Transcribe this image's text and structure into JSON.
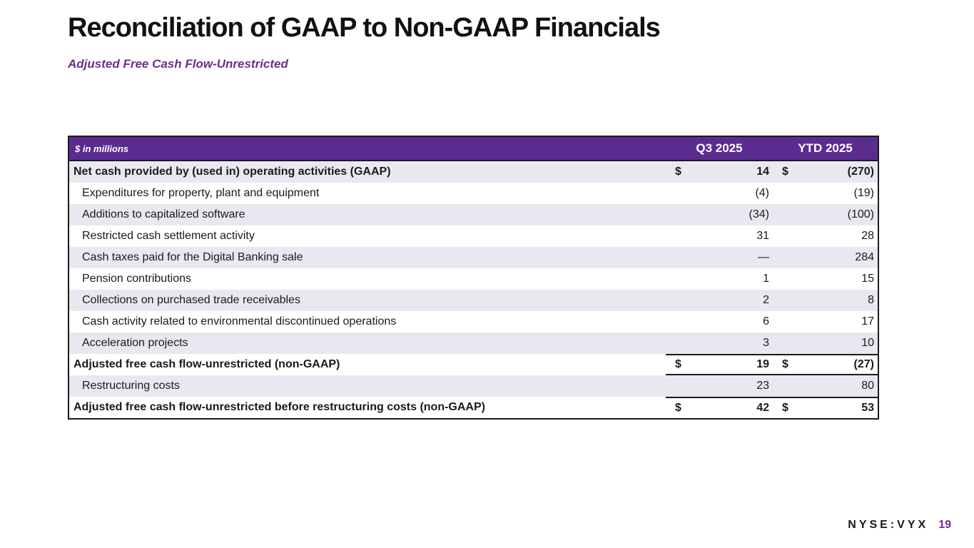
{
  "slide": {
    "title": "Reconciliation of GAAP to Non-GAAP Financials",
    "subtitle": "Adjusted Free Cash Flow-Unrestricted",
    "footer": {
      "ticker": "NYSE:VYX",
      "page_number": "19"
    }
  },
  "colors": {
    "header_purple": "#5b2c90",
    "shaded_row": "#e9e8f1",
    "subtitle_purple": "#6b2d91",
    "page_number_purple": "#7030a0"
  },
  "table": {
    "unit_label": "$ in millions",
    "columns": [
      "Q3 2025",
      "YTD 2025"
    ],
    "rows": [
      {
        "label": "Net cash provided by (used in) operating activities (GAAP)",
        "q3_dollar": "$",
        "q3": "14",
        "ytd_dollar": "$",
        "ytd": "(270)",
        "bold": true,
        "indent": false,
        "shaded": true,
        "rule_top": false,
        "rule_bottom": false
      },
      {
        "label": "Expenditures for property, plant and equipment",
        "q3_dollar": "",
        "q3": "(4)",
        "ytd_dollar": "",
        "ytd": "(19)",
        "bold": false,
        "indent": true,
        "shaded": false,
        "rule_top": false,
        "rule_bottom": false
      },
      {
        "label": "Additions to capitalized software",
        "q3_dollar": "",
        "q3": "(34)",
        "ytd_dollar": "",
        "ytd": "(100)",
        "bold": false,
        "indent": true,
        "shaded": true,
        "rule_top": false,
        "rule_bottom": false
      },
      {
        "label": "Restricted cash settlement activity",
        "q3_dollar": "",
        "q3": "31",
        "ytd_dollar": "",
        "ytd": "28",
        "bold": false,
        "indent": true,
        "shaded": false,
        "rule_top": false,
        "rule_bottom": false
      },
      {
        "label": "Cash taxes paid for the Digital Banking sale",
        "q3_dollar": "",
        "q3": "—",
        "ytd_dollar": "",
        "ytd": "284",
        "bold": false,
        "indent": true,
        "shaded": true,
        "rule_top": false,
        "rule_bottom": false
      },
      {
        "label": "Pension contributions",
        "q3_dollar": "",
        "q3": "1",
        "ytd_dollar": "",
        "ytd": "15",
        "bold": false,
        "indent": true,
        "shaded": false,
        "rule_top": false,
        "rule_bottom": false
      },
      {
        "label": "Collections on purchased trade receivables",
        "q3_dollar": "",
        "q3": "2",
        "ytd_dollar": "",
        "ytd": "8",
        "bold": false,
        "indent": true,
        "shaded": true,
        "rule_top": false,
        "rule_bottom": false
      },
      {
        "label": "Cash activity related to environmental discontinued operations",
        "q3_dollar": "",
        "q3": "6",
        "ytd_dollar": "",
        "ytd": "17",
        "bold": false,
        "indent": true,
        "shaded": false,
        "rule_top": false,
        "rule_bottom": false
      },
      {
        "label": "Acceleration projects",
        "q3_dollar": "",
        "q3": "3",
        "ytd_dollar": "",
        "ytd": "10",
        "bold": false,
        "indent": true,
        "shaded": true,
        "rule_top": false,
        "rule_bottom": false
      },
      {
        "label": "Adjusted free cash flow-unrestricted (non-GAAP)",
        "q3_dollar": "$",
        "q3": "19",
        "ytd_dollar": "$",
        "ytd": "(27)",
        "bold": true,
        "indent": false,
        "shaded": false,
        "rule_top": true,
        "rule_bottom": true
      },
      {
        "label": "Restructuring costs",
        "q3_dollar": "",
        "q3": "23",
        "ytd_dollar": "",
        "ytd": "80",
        "bold": false,
        "indent": true,
        "shaded": true,
        "rule_top": false,
        "rule_bottom": false
      },
      {
        "label": "Adjusted free cash flow-unrestricted before restructuring costs (non-GAAP)",
        "q3_dollar": "$",
        "q3": "42",
        "ytd_dollar": "$",
        "ytd": "53",
        "bold": true,
        "indent": false,
        "shaded": false,
        "rule_top": true,
        "rule_bottom": false
      }
    ]
  }
}
